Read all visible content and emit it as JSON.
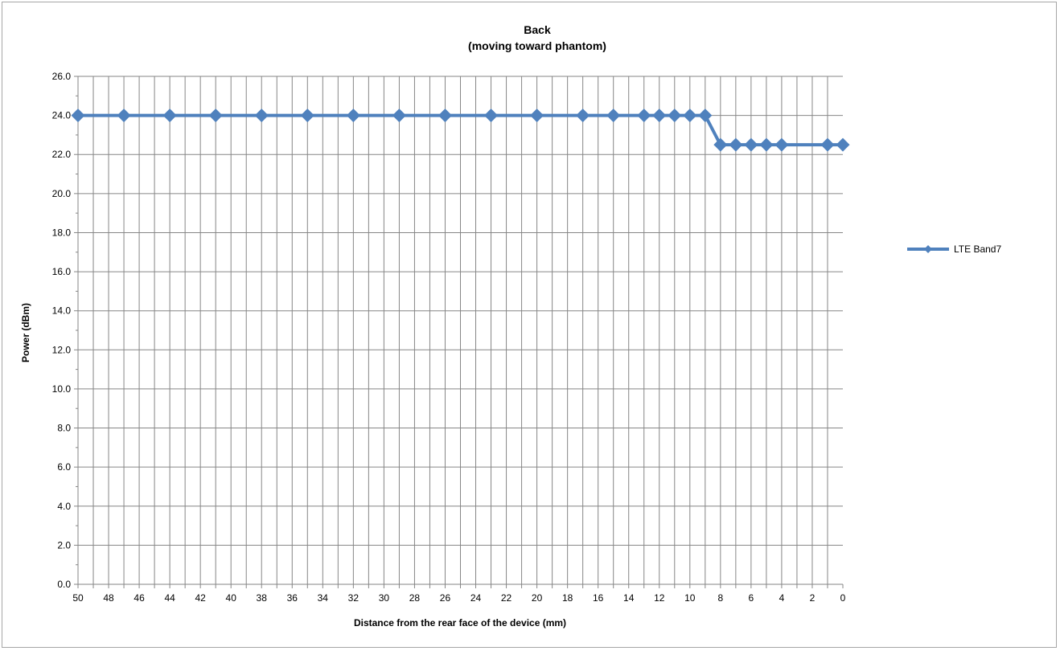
{
  "chart_data": {
    "type": "line",
    "title_line1": "Back",
    "title_line2": "(moving toward phantom)",
    "xlabel": "Distance from the rear face of the device (mm)",
    "ylabel": "Power (dBm)",
    "x_reversed": true,
    "xlim": [
      0,
      50
    ],
    "ylim": [
      0,
      26
    ],
    "y_ticks": [
      "0.0",
      "2.0",
      "4.0",
      "6.0",
      "8.0",
      "10.0",
      "12.0",
      "14.0",
      "16.0",
      "18.0",
      "20.0",
      "22.0",
      "24.0",
      "26.0"
    ],
    "x_ticks": [
      "50",
      "48",
      "46",
      "44",
      "42",
      "40",
      "38",
      "36",
      "34",
      "32",
      "30",
      "28",
      "26",
      "24",
      "22",
      "20",
      "18",
      "16",
      "14",
      "12",
      "10",
      "8",
      "6",
      "4",
      "2",
      "0"
    ],
    "grid": true,
    "legend_position": "right",
    "series": [
      {
        "name": "LTE Band7",
        "color": "#4f81bd",
        "marker": "diamond",
        "x": [
          50,
          47,
          44,
          41,
          38,
          35,
          32,
          29,
          26,
          23,
          20,
          17,
          15,
          13,
          12,
          11,
          10,
          9,
          8,
          7,
          6,
          5,
          4,
          1,
          0
        ],
        "y": [
          24,
          24,
          24,
          24,
          24,
          24,
          24,
          24,
          24,
          24,
          24,
          24,
          24,
          24,
          24,
          24,
          24,
          24,
          22.5,
          22.5,
          22.5,
          22.5,
          22.5,
          22.5,
          22.5
        ]
      }
    ]
  }
}
